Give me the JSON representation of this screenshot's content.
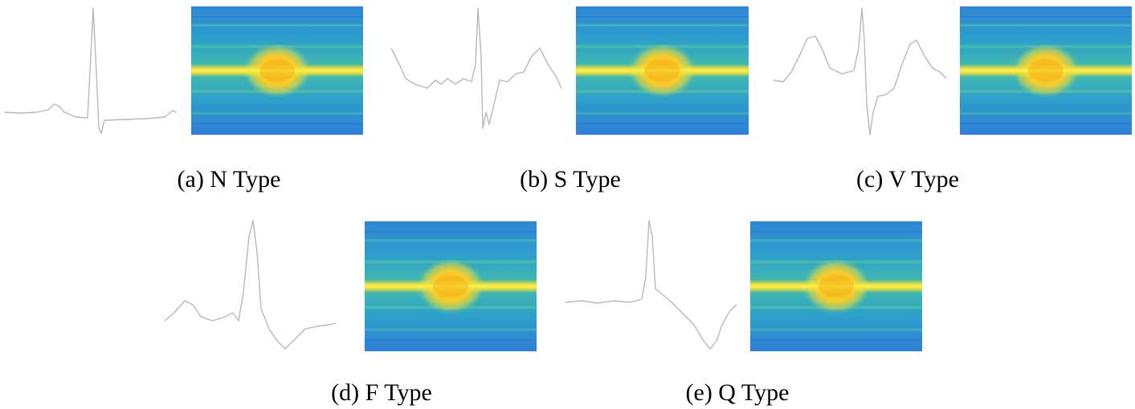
{
  "captions": [
    "(a) N Type",
    "(b) S Type",
    "(c) V Type",
    "(d) F Type",
    "(e) Q Type"
  ]
}
